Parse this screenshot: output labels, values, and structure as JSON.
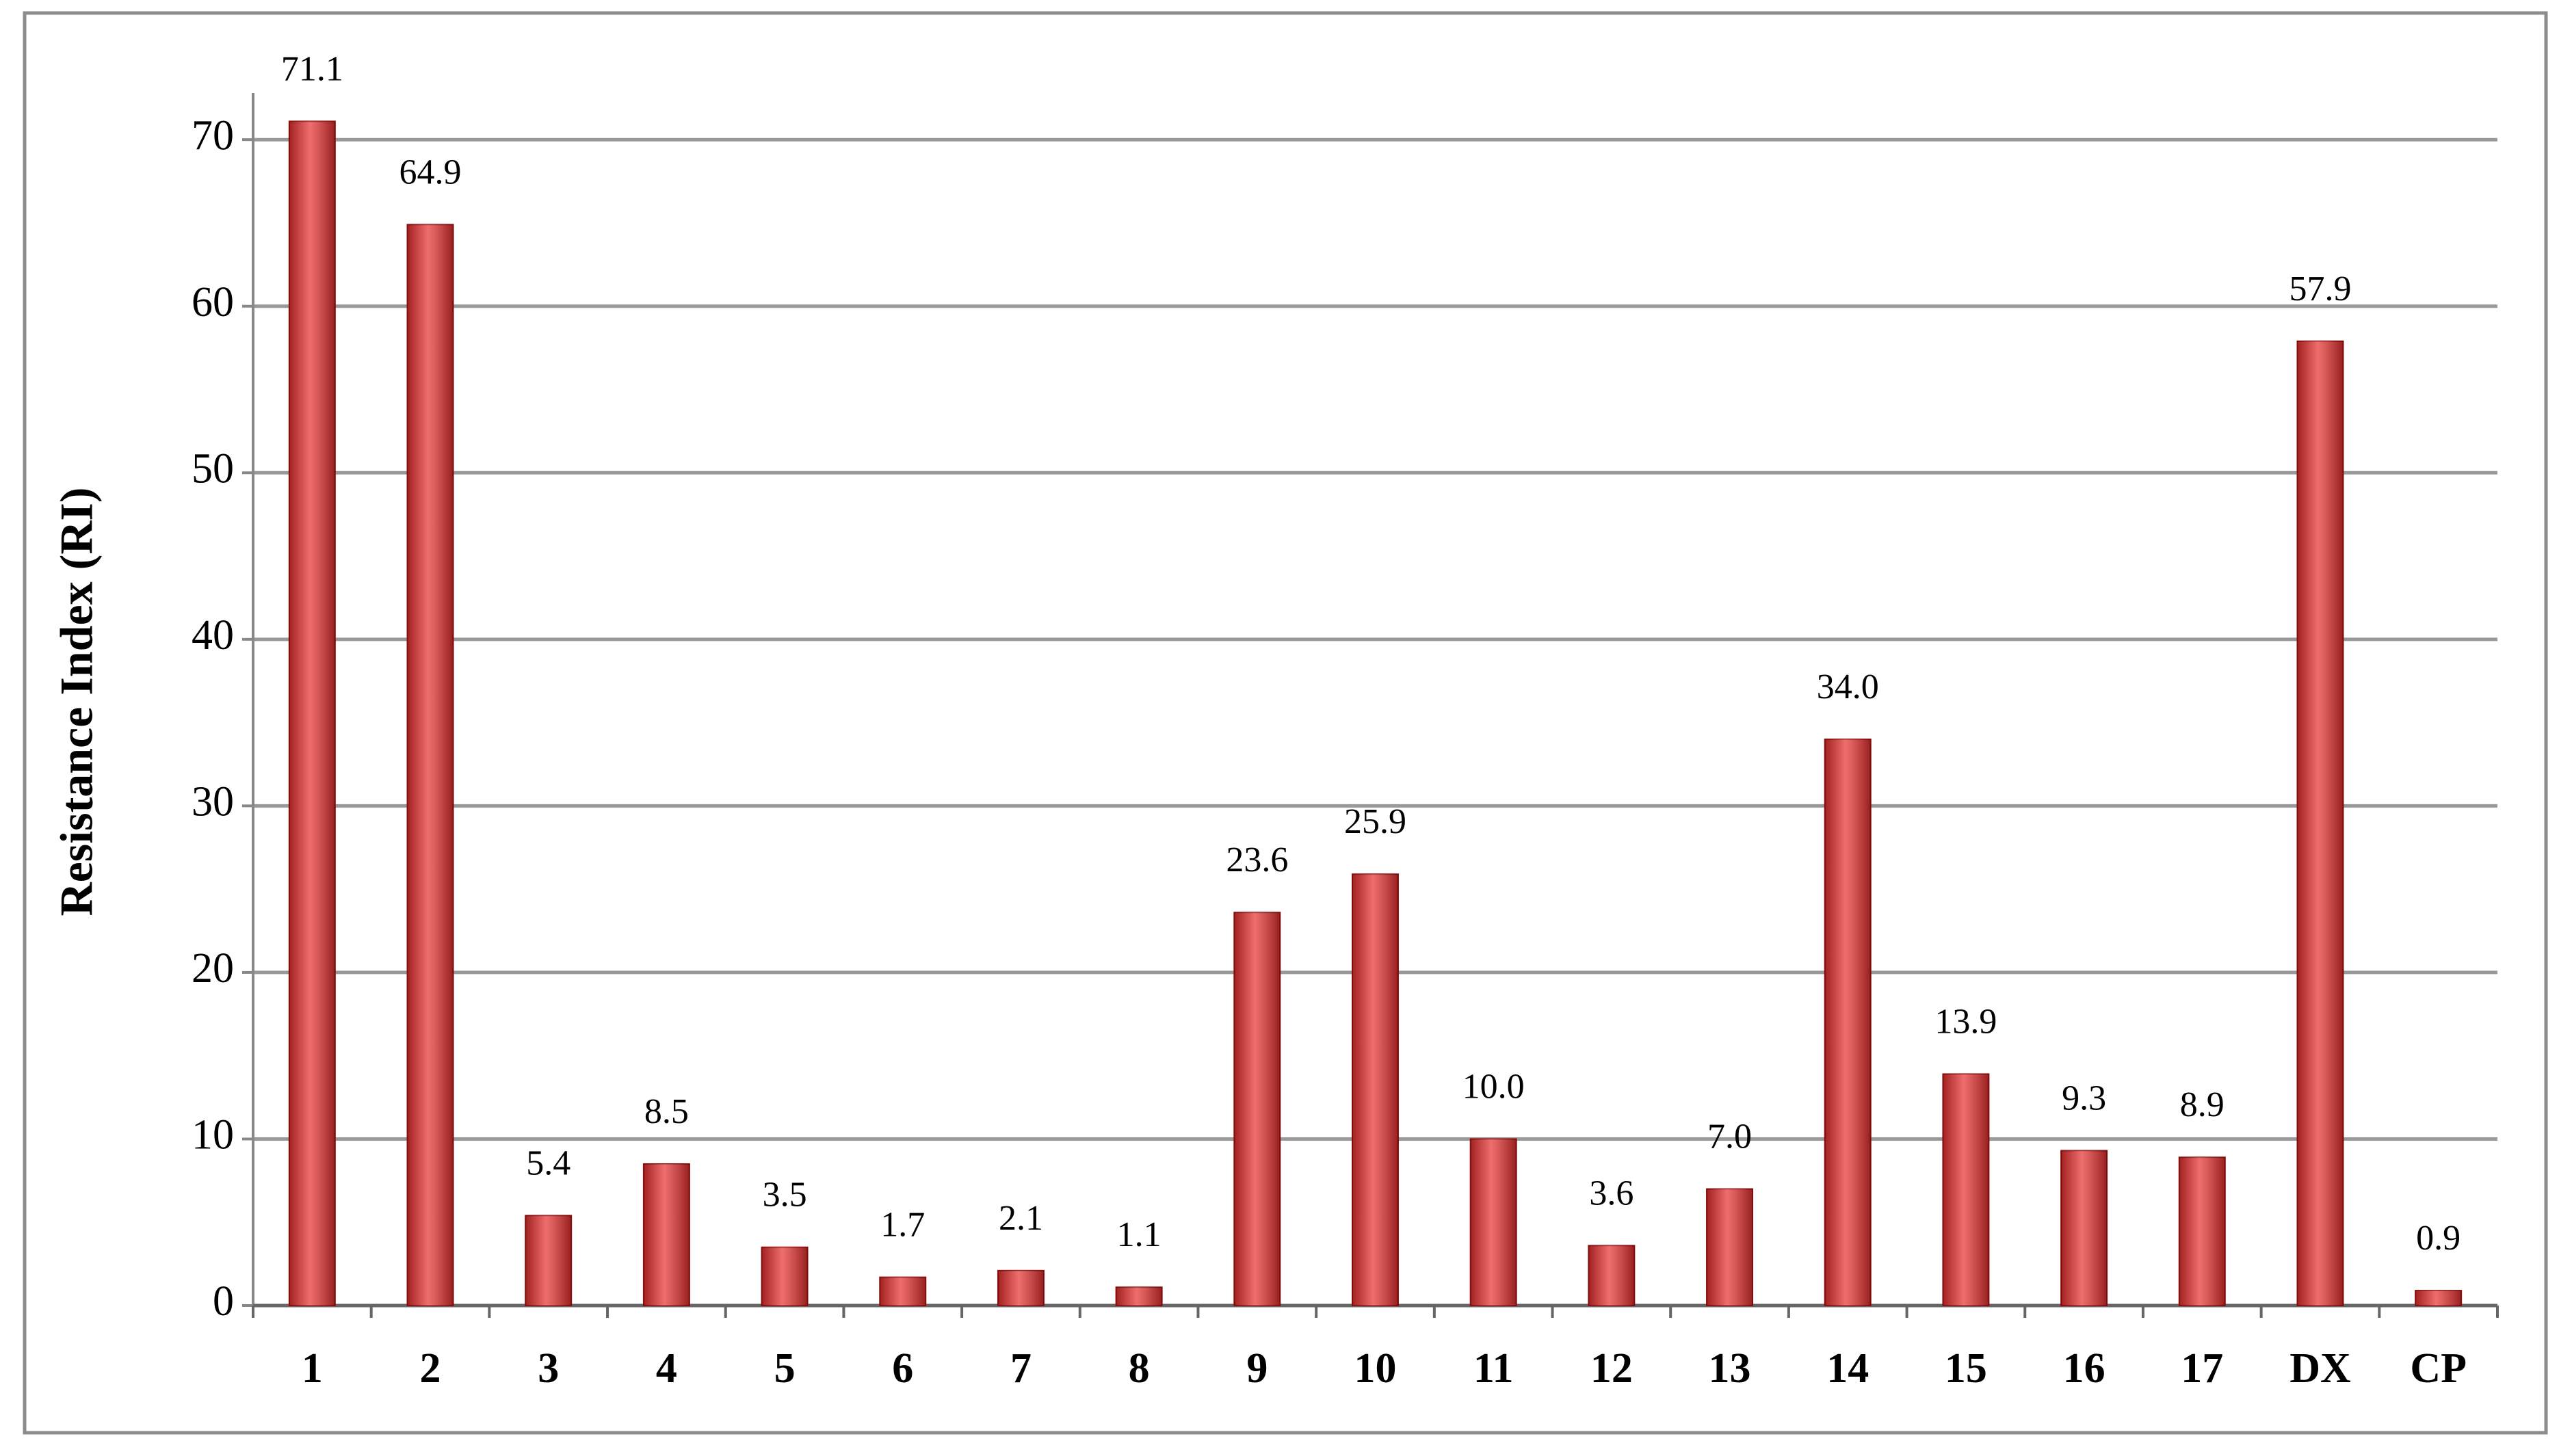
{
  "chart_data": {
    "type": "bar",
    "y_axis_label": "Resistance Index (RI)",
    "categories": [
      "1",
      "2",
      "3",
      "4",
      "5",
      "6",
      "7",
      "8",
      "9",
      "10",
      "11",
      "12",
      "13",
      "14",
      "15",
      "16",
      "17",
      "DX",
      "CP"
    ],
    "values": [
      71.1,
      64.9,
      5.4,
      8.5,
      3.5,
      1.7,
      2.1,
      1.1,
      23.6,
      25.9,
      10.0,
      3.6,
      7.0,
      34.0,
      13.9,
      9.3,
      8.9,
      57.9,
      0.9
    ],
    "value_labels": [
      "71.1",
      "64.9",
      "5.4",
      "8.5",
      "3.5",
      "1.7",
      "2.1",
      "1.1",
      "23.6",
      "25.9",
      "10.0",
      "3.6",
      "7.0",
      "34.0",
      "13.9",
      "9.3",
      "8.9",
      "57.9",
      "0.9"
    ],
    "color": "#e8302f",
    "ylim": [
      0,
      72.8
    ],
    "yticks": [
      0,
      10,
      20,
      30,
      40,
      50,
      60,
      70
    ],
    "grid": true
  }
}
